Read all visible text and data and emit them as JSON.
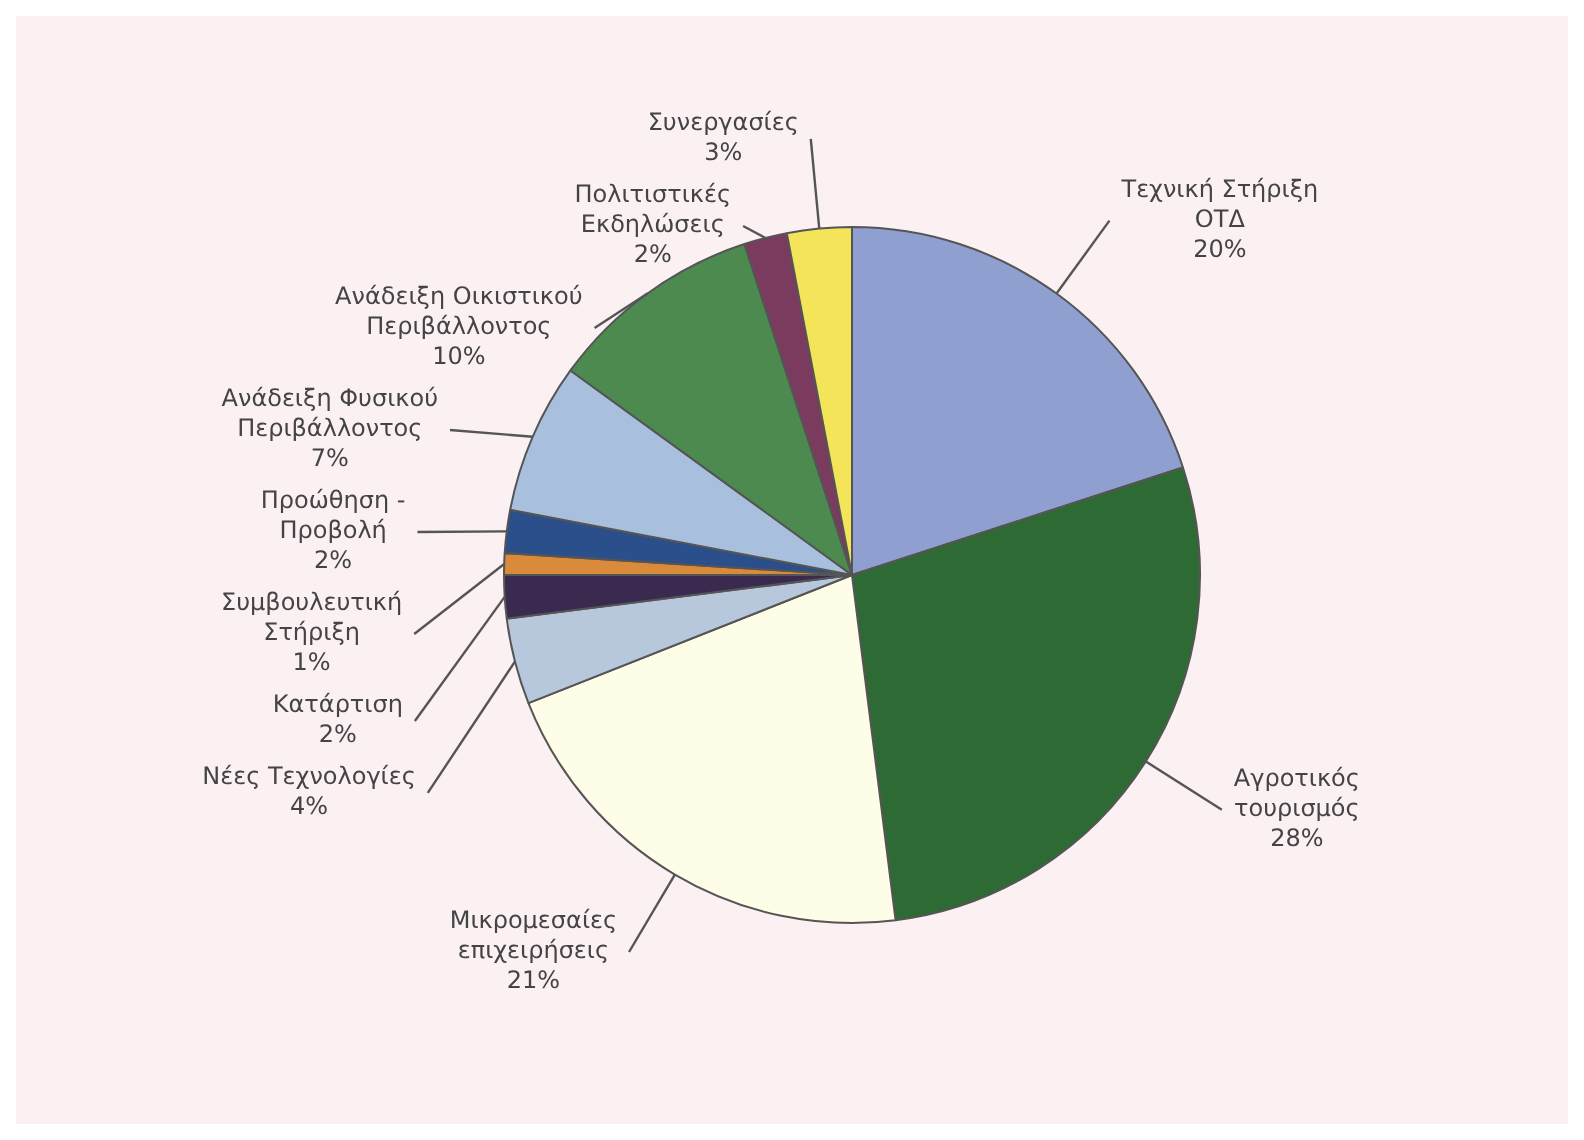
{
  "chart_data": {
    "type": "pie",
    "categories": [
      "Τεχνική Στήριξη ΟΤΔ",
      "Αγροτικός τουρισμός",
      "Μικρομεσαίες επιχειρήσεις",
      "Νέες Τεχνολογίες",
      "Κατάρτιση",
      "Συμβουλευτική Στήριξη",
      "Προώθηση - Προβολή",
      "Ανάδειξη Φυσικού Περιβάλλοντος",
      "Ανάδειξη Οικιστικού Περιβάλλοντος",
      "Πολιτιστικές Εκδηλώσεις",
      "Συνεργασίες"
    ],
    "values": [
      20,
      28,
      21,
      4,
      2,
      1,
      2,
      7,
      10,
      2,
      3
    ],
    "value_labels": [
      "20%",
      "28%",
      "21%",
      "4%",
      "2%",
      "1%",
      "2%",
      "7%",
      "10%",
      "2%",
      "3%"
    ],
    "colors": [
      "#8e9fd0",
      "#2e6b34",
      "#fdfde8",
      "#b7c8dc",
      "#3b2a4f",
      "#d98a3a",
      "#2a4f8a",
      "#a8c0de",
      "#4d8a4f",
      "#7a3b5e",
      "#f3e45a"
    ],
    "legend": false
  }
}
